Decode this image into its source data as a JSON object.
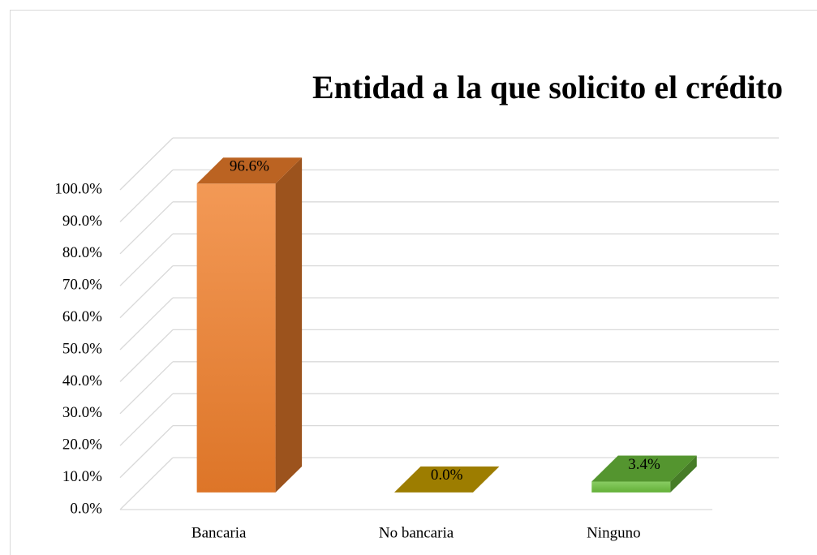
{
  "chart_data": {
    "type": "bar3d",
    "title": "Entidad a la que solicito el crédito",
    "categories": [
      "Bancaria",
      "No bancaria",
      "Ninguno"
    ],
    "values": [
      96.6,
      0.0,
      3.4
    ],
    "value_labels": [
      "96.6%",
      "0.0%",
      "3.4%"
    ],
    "colors": [
      "#f07f2c",
      "#c9a000",
      "#6cbf3c"
    ],
    "ylim": [
      0,
      100
    ],
    "yticks": [
      {
        "value": 0,
        "label": "0.0%"
      },
      {
        "value": 10,
        "label": "10.0%"
      },
      {
        "value": 20,
        "label": "20.0%"
      },
      {
        "value": 30,
        "label": "30.0%"
      },
      {
        "value": 40,
        "label": "40.0%"
      },
      {
        "value": 50,
        "label": "50.0%"
      },
      {
        "value": 60,
        "label": "60.0%"
      },
      {
        "value": 70,
        "label": "70.0%"
      },
      {
        "value": 80,
        "label": "80.0%"
      },
      {
        "value": 90,
        "label": "90.0%"
      },
      {
        "value": 100,
        "label": "100.0%"
      }
    ],
    "grid": true
  }
}
